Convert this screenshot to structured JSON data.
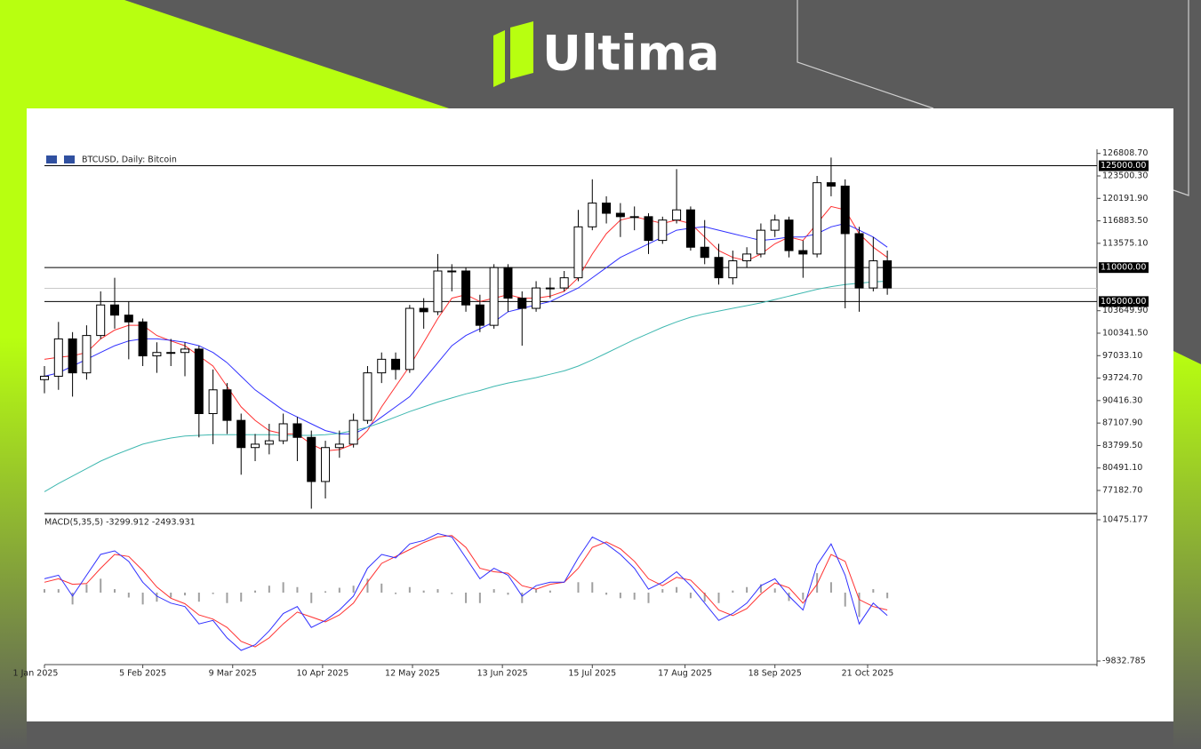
{
  "logo": "Ultima",
  "chart_data": [
    {
      "type": "candlestick",
      "title": "BTCUSD, Daily:  Bitcoin",
      "x": [
        "2025-01-01",
        "2025-01-06",
        "2025-01-11",
        "2025-01-16",
        "2025-01-21",
        "2025-01-26",
        "2025-01-31",
        "2025-02-05",
        "2025-02-10",
        "2025-02-15",
        "2025-02-20",
        "2025-02-25",
        "2025-03-02",
        "2025-03-07",
        "2025-03-12",
        "2025-03-17",
        "2025-03-22",
        "2025-03-27",
        "2025-04-01",
        "2025-04-06",
        "2025-04-11",
        "2025-04-16",
        "2025-04-21",
        "2025-04-26",
        "2025-05-01",
        "2025-05-06",
        "2025-05-11",
        "2025-05-16",
        "2025-05-21",
        "2025-05-26",
        "2025-05-31",
        "2025-06-05",
        "2025-06-10",
        "2025-06-15",
        "2025-06-20",
        "2025-06-25",
        "2025-06-30",
        "2025-07-05",
        "2025-07-10",
        "2025-07-15",
        "2025-07-20",
        "2025-07-25",
        "2025-07-30",
        "2025-08-04",
        "2025-08-09",
        "2025-08-14",
        "2025-08-19",
        "2025-08-24",
        "2025-08-29",
        "2025-09-03",
        "2025-09-08",
        "2025-09-13",
        "2025-09-18",
        "2025-09-23",
        "2025-09-28",
        "2025-10-03",
        "2025-10-08",
        "2025-10-13",
        "2025-10-18",
        "2025-10-23",
        "2025-10-28"
      ],
      "open": [
        93500,
        94000,
        99500,
        94500,
        100000,
        104500,
        103000,
        102000,
        97000,
        97500,
        97500,
        98000,
        88500,
        92000,
        87500,
        83500,
        84000,
        84500,
        87000,
        85000,
        78500,
        83500,
        84000,
        87500,
        94500,
        96500,
        95000,
        104000,
        103500,
        109500,
        109500,
        104500,
        101500,
        110000,
        105500,
        104000,
        107000,
        107000,
        108500,
        116000,
        119500,
        118000,
        117500,
        117500,
        114000,
        117000,
        118500,
        113000,
        111500,
        108500,
        111000,
        112000,
        115500,
        117000,
        112500,
        112000,
        122500,
        122000,
        115000,
        107000,
        111000
      ],
      "high": [
        95500,
        102000,
        100500,
        101500,
        106500,
        108500,
        105000,
        102500,
        99000,
        99500,
        99000,
        98500,
        95000,
        93000,
        88500,
        85500,
        87000,
        88500,
        88000,
        86000,
        84500,
        86000,
        88500,
        95500,
        97500,
        97500,
        104500,
        105500,
        112000,
        110500,
        110000,
        106000,
        110500,
        110500,
        106500,
        108000,
        108500,
        109500,
        118500,
        123000,
        120500,
        119500,
        119000,
        118000,
        117500,
        124500,
        119000,
        117000,
        113500,
        112500,
        113000,
        116500,
        117800,
        117500,
        114000,
        123500,
        126200,
        123000,
        116000,
        114500,
        112500
      ],
      "low": [
        91500,
        92000,
        91000,
        93500,
        99500,
        101000,
        96500,
        95500,
        94500,
        95500,
        94000,
        85000,
        84000,
        85500,
        79500,
        81500,
        82500,
        84000,
        81500,
        74500,
        76000,
        82000,
        83500,
        87000,
        93000,
        93500,
        94500,
        101000,
        103000,
        106500,
        103500,
        100500,
        101000,
        103500,
        98500,
        103500,
        105500,
        106500,
        108000,
        115500,
        116500,
        114500,
        115500,
        112000,
        113500,
        116500,
        112500,
        110500,
        107500,
        107500,
        110000,
        111500,
        114500,
        111500,
        108500,
        111500,
        120500,
        104000,
        103500,
        106500,
        106000
      ],
      "close": [
        94000,
        99500,
        94500,
        100000,
        104500,
        103000,
        102000,
        97000,
        97500,
        97500,
        98000,
        88500,
        92000,
        87500,
        83500,
        84000,
        84500,
        87000,
        85000,
        78500,
        83500,
        84000,
        87500,
        94500,
        96500,
        95000,
        104000,
        103500,
        109500,
        109500,
        104500,
        101500,
        110000,
        105500,
        104000,
        107000,
        107000,
        108500,
        116000,
        119500,
        118000,
        117500,
        117500,
        114000,
        117000,
        118500,
        113000,
        111500,
        108500,
        111000,
        112000,
        115500,
        117000,
        112500,
        112000,
        122500,
        122000,
        115000,
        107000,
        111000,
        107000
      ],
      "lines": [
        {
          "color": "#ff3030",
          "values": [
            96500,
            96800,
            97000,
            97500,
            99500,
            100800,
            101500,
            101500,
            100000,
            99200,
            98500,
            97000,
            95500,
            92500,
            89500,
            87500,
            86000,
            85500,
            85500,
            84000,
            83000,
            83200,
            84000,
            86000,
            89500,
            92500,
            95500,
            99000,
            102500,
            105500,
            106000,
            105000,
            105500,
            106000,
            105500,
            105500,
            105800,
            106500,
            108500,
            112000,
            115000,
            117000,
            117500,
            117000,
            116500,
            117000,
            116500,
            114500,
            112500,
            111500,
            111000,
            112000,
            113500,
            114500,
            114000,
            116500,
            119000,
            118500,
            115000,
            113000,
            111500
          ]
        },
        {
          "color": "#3030ff",
          "values": [
            94000,
            94500,
            95500,
            96500,
            97500,
            98500,
            99200,
            99500,
            99500,
            99300,
            99000,
            98500,
            97500,
            96000,
            94000,
            92000,
            90500,
            89000,
            88000,
            87000,
            86000,
            85500,
            85500,
            86500,
            88000,
            89500,
            91000,
            93500,
            96000,
            98500,
            100000,
            101000,
            102000,
            103500,
            104000,
            104500,
            105000,
            106000,
            107000,
            108500,
            110000,
            111500,
            112500,
            113500,
            114500,
            115500,
            115800,
            116000,
            115500,
            115000,
            114500,
            114000,
            114200,
            114500,
            114500,
            115000,
            116000,
            116500,
            115500,
            114500,
            113000
          ]
        },
        {
          "color": "#3fb8b0",
          "values": [
            77000,
            78200,
            79300,
            80400,
            81500,
            82400,
            83200,
            84000,
            84500,
            84900,
            85200,
            85300,
            85400,
            85400,
            85400,
            85400,
            85400,
            85300,
            85300,
            85300,
            85400,
            85600,
            86000,
            86500,
            87200,
            88000,
            88800,
            89500,
            90200,
            90800,
            91400,
            91900,
            92500,
            93000,
            93400,
            93800,
            94300,
            94800,
            95500,
            96400,
            97400,
            98400,
            99400,
            100300,
            101200,
            102000,
            102700,
            103200,
            103600,
            104000,
            104400,
            104800,
            105300,
            105800,
            106300,
            106800,
            107200,
            107500,
            107700,
            107900,
            108000
          ]
        }
      ],
      "levels": [
        {
          "value": 125000,
          "label": "125000.00"
        },
        {
          "value": 110000,
          "label": "110000.00"
        },
        {
          "value": 105000,
          "label": "105000.00"
        }
      ],
      "current_price": 106950,
      "xlim": [
        "2025-01-01",
        "2026-01-10"
      ],
      "xticks": [
        {
          "value": "2025-01-01",
          "label": "1 Jan 2025"
        },
        {
          "value": "2025-02-05",
          "label": "5 Feb 2025"
        },
        {
          "value": "2025-03-09",
          "label": "9 Mar 2025"
        },
        {
          "value": "2025-04-10",
          "label": "10 Apr 2025"
        },
        {
          "value": "2025-05-12",
          "label": "12 May 2025"
        },
        {
          "value": "2025-06-13",
          "label": "13 Jun 2025"
        },
        {
          "value": "2025-07-15",
          "label": "15 Jul 2025"
        },
        {
          "value": "2025-08-17",
          "label": "17 Aug 2025"
        },
        {
          "value": "2025-09-18",
          "label": "18 Sep 2025"
        },
        {
          "value": "2025-10-21",
          "label": "21 Oct 2025"
        }
      ],
      "ylim": [
        73782,
        127424
      ],
      "yticks": [
        {
          "value": 126808.7,
          "label": "126808.70"
        },
        {
          "value": 123500.3,
          "label": "123500.30"
        },
        {
          "value": 120191.9,
          "label": "120191.90"
        },
        {
          "value": 116883.5,
          "label": "116883.50"
        },
        {
          "value": 113575.1,
          "label": "113575.10"
        },
        {
          "value": 103649.9,
          "label": "103649.90"
        },
        {
          "value": 100341.5,
          "label": "100341.50"
        },
        {
          "value": 97033.1,
          "label": "97033.10"
        },
        {
          "value": 93724.7,
          "label": "93724.70"
        },
        {
          "value": 90416.3,
          "label": "90416.30"
        },
        {
          "value": 87107.9,
          "label": "87107.90"
        },
        {
          "value": 83799.5,
          "label": "83799.50"
        },
        {
          "value": 80491.1,
          "label": "80491.10"
        },
        {
          "value": 77182.7,
          "label": "77182.70"
        }
      ]
    },
    {
      "type": "macd",
      "title": "MACD(5,35,5) -3299.912 -2493.931",
      "x": [
        "2025-01-01",
        "2025-01-06",
        "2025-01-11",
        "2025-01-16",
        "2025-01-21",
        "2025-01-26",
        "2025-01-31",
        "2025-02-05",
        "2025-02-10",
        "2025-02-15",
        "2025-02-20",
        "2025-02-25",
        "2025-03-02",
        "2025-03-07",
        "2025-03-12",
        "2025-03-17",
        "2025-03-22",
        "2025-03-27",
        "2025-04-01",
        "2025-04-06",
        "2025-04-11",
        "2025-04-16",
        "2025-04-21",
        "2025-04-26",
        "2025-05-01",
        "2025-05-06",
        "2025-05-11",
        "2025-05-16",
        "2025-05-21",
        "2025-05-26",
        "2025-05-31",
        "2025-06-05",
        "2025-06-10",
        "2025-06-15",
        "2025-06-20",
        "2025-06-25",
        "2025-06-30",
        "2025-07-05",
        "2025-07-10",
        "2025-07-15",
        "2025-07-20",
        "2025-07-25",
        "2025-07-30",
        "2025-08-04",
        "2025-08-09",
        "2025-08-14",
        "2025-08-19",
        "2025-08-24",
        "2025-08-29",
        "2025-09-03",
        "2025-09-08",
        "2025-09-13",
        "2025-09-18",
        "2025-09-23",
        "2025-09-28",
        "2025-10-03",
        "2025-10-08",
        "2025-10-13",
        "2025-10-18",
        "2025-10-23",
        "2025-10-28"
      ],
      "macd": {
        "color": "#3030ff",
        "values": [
          2000,
          2500,
          -500,
          2500,
          5500,
          6000,
          4500,
          1500,
          -500,
          -1500,
          -2000,
          -4500,
          -4000,
          -6500,
          -8300,
          -7500,
          -5500,
          -3000,
          -2000,
          -5000,
          -4000,
          -2500,
          -500,
          3500,
          5500,
          5000,
          7000,
          7500,
          8500,
          8000,
          5000,
          2000,
          3500,
          2500,
          -500,
          1000,
          1500,
          1500,
          5000,
          8000,
          7000,
          5500,
          3500,
          500,
          1500,
          3000,
          1000,
          -1500,
          -4000,
          -3000,
          -1500,
          1000,
          2000,
          -500,
          -2500,
          4000,
          7000,
          2500,
          -4500,
          -1500,
          -3299.912
        ]
      },
      "signal": {
        "color": "#ff3030",
        "values": [
          1500,
          2000,
          1200,
          1300,
          3500,
          5500,
          5200,
          3200,
          800,
          -800,
          -1600,
          -3200,
          -3800,
          -5000,
          -7000,
          -7800,
          -6500,
          -4500,
          -2800,
          -3500,
          -4200,
          -3200,
          -1500,
          1500,
          4200,
          5200,
          6200,
          7200,
          8000,
          8200,
          6500,
          3500,
          3000,
          2800,
          1000,
          500,
          1200,
          1500,
          3500,
          6500,
          7300,
          6300,
          4500,
          2000,
          1000,
          2200,
          1800,
          -200,
          -2500,
          -3300,
          -2300,
          -200,
          1400,
          700,
          -1500,
          1200,
          5500,
          4500,
          -1000,
          -2000,
          -2493.931
        ]
      },
      "histogram": {
        "color": "#a0a0a0",
        "values": [
          500,
          500,
          -1700,
          1200,
          2000,
          500,
          -700,
          -1700,
          -1300,
          -700,
          -400,
          -1300,
          -200,
          -1500,
          -1300,
          300,
          1000,
          1500,
          800,
          -1500,
          200,
          700,
          1000,
          2000,
          1300,
          -200,
          800,
          300,
          500,
          -200,
          -1500,
          -1500,
          500,
          -300,
          -1500,
          500,
          300,
          0,
          1500,
          1500,
          -300,
          -800,
          -1000,
          -1500,
          500,
          800,
          -800,
          -1300,
          -1500,
          300,
          800,
          1200,
          600,
          -1200,
          -1000,
          2800,
          1500,
          -2000,
          -3500,
          500,
          -806
        ]
      },
      "xlim": [
        "2025-01-01",
        "2026-01-10"
      ],
      "ylim": [
        -10344,
        11369
      ],
      "yticks": [
        10475.177,
        -9832.785
      ]
    }
  ]
}
